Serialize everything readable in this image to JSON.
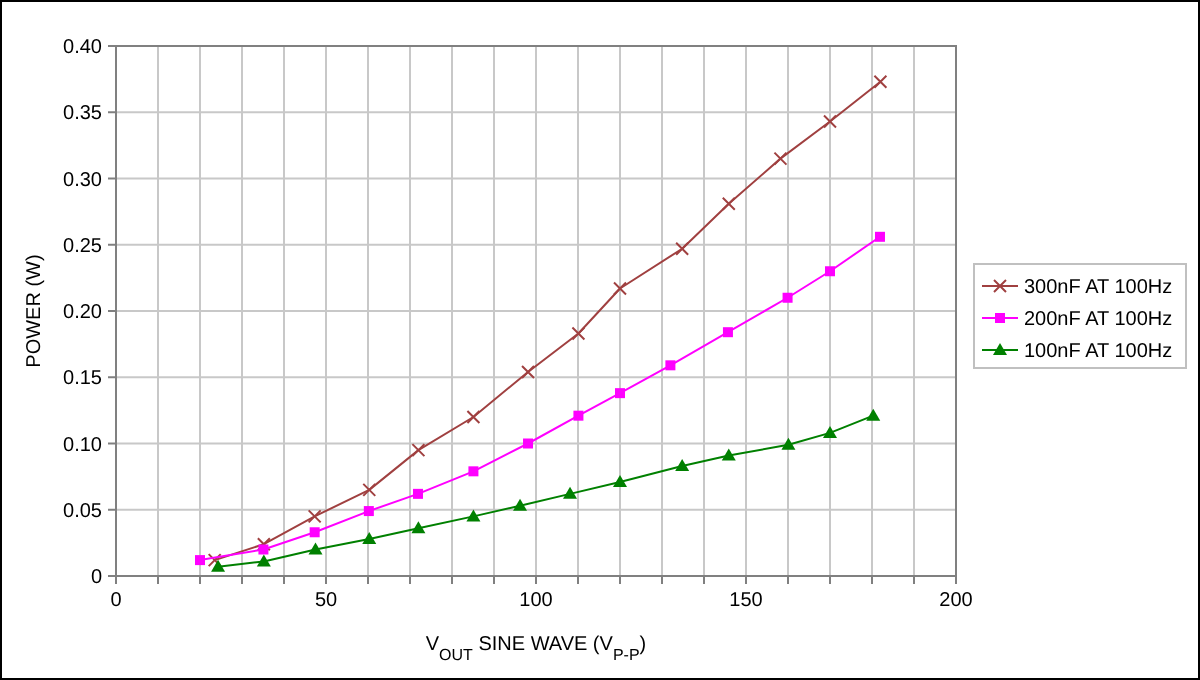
{
  "chart_data": {
    "type": "line",
    "xlabel": "V$_{OUT}$ SINE WAVE (V$_{P-P}$)",
    "ylabel": "POWER (W)",
    "xlim": [
      0,
      200
    ],
    "xticks": [
      0,
      {
        "value": 10,
        "label": null
      },
      {
        "value": 20,
        "label": null
      },
      {
        "value": 30,
        "label": null
      },
      {
        "value": 40,
        "label": null
      },
      50,
      {
        "value": 60,
        "label": null
      },
      {
        "value": 70,
        "label": null
      },
      {
        "value": 80,
        "label": null
      },
      {
        "value": 90,
        "label": null
      },
      100,
      {
        "value": 110,
        "label": null
      },
      {
        "value": 120,
        "label": null
      },
      {
        "value": 130,
        "label": null
      },
      {
        "value": 140,
        "label": null
      },
      150,
      {
        "value": 160,
        "label": null
      },
      {
        "value": 170,
        "label": null
      },
      {
        "value": 180,
        "label": null
      },
      {
        "value": 190,
        "label": null
      },
      200
    ],
    "ylim": [
      0,
      0.4
    ],
    "yticks": [
      {
        "value": 0,
        "label": "0"
      },
      {
        "value": 0.05,
        "label": "0.05"
      },
      {
        "value": 0.1,
        "label": "0.10"
      },
      {
        "value": 0.15,
        "label": "0.15"
      },
      {
        "value": 0.2,
        "label": "0.20"
      },
      {
        "value": 0.25,
        "label": "0.25"
      },
      {
        "value": 0.3,
        "label": "0.30"
      },
      {
        "value": 0.35,
        "label": "0.35"
      },
      {
        "value": 0.4,
        "label": "0.40"
      }
    ],
    "grid": true,
    "legend": "right",
    "line_style": "solid",
    "series": [
      {
        "name": "300nF AT 100Hz",
        "color": "#a04040",
        "marker": "cross",
        "x": [
          23.5,
          35.2,
          47.3,
          60.3,
          72,
          85.1,
          98.1,
          110.1,
          120,
          134.8,
          145.9,
          158.2,
          170,
          182
        ],
        "values": [
          0.012,
          0.024,
          0.045,
          0.065,
          0.095,
          0.12,
          0.154,
          0.183,
          0.217,
          0.247,
          0.281,
          0.315,
          0.343,
          0.373
        ]
      },
      {
        "name": "200nF AT 100Hz",
        "color": "#ff00ff",
        "marker": "square",
        "x": [
          20,
          35.1,
          47.3,
          60.2,
          71.9,
          85.1,
          98.1,
          110.1,
          120,
          132,
          145.7,
          159.9,
          170,
          181.9
        ],
        "values": [
          0.012,
          0.02,
          0.033,
          0.049,
          0.062,
          0.079,
          0.1,
          0.121,
          0.138,
          0.159,
          0.184,
          0.21,
          0.23,
          0.256
        ]
      },
      {
        "name": "100nF AT 100Hz",
        "color": "#008000",
        "marker": "triangle",
        "x": [
          24.3,
          35.2,
          47.5,
          60.3,
          72,
          85.1,
          96.2,
          108.1,
          120,
          134.8,
          145.9,
          160.1,
          170,
          180.3
        ],
        "values": [
          0.007,
          0.011,
          0.02,
          0.028,
          0.036,
          0.045,
          0.053,
          0.062,
          0.071,
          0.083,
          0.091,
          0.099,
          0.108,
          0.121
        ]
      }
    ]
  }
}
